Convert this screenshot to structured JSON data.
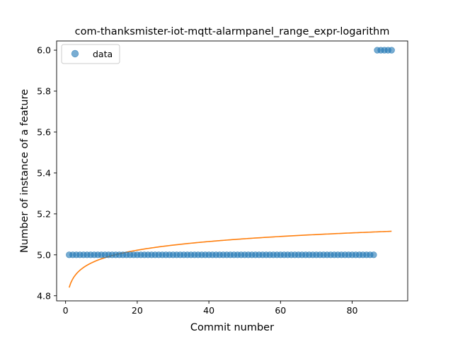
{
  "chart_data": {
    "type": "scatter",
    "title": "com-thanksmister-iot-mqtt-alarmpanel_range_expr-logarithm",
    "xlabel": "Commit number",
    "ylabel": "Number of instance of a feature",
    "xlim": [
      -2.5,
      95.5
    ],
    "ylim": [
      4.775,
      6.045
    ],
    "xticks": [
      0,
      20,
      40,
      60,
      80
    ],
    "yticks": [
      4.8,
      5.0,
      5.2,
      5.4,
      5.6,
      5.8,
      6.0
    ],
    "xtick_labels": [
      "0",
      "20",
      "40",
      "60",
      "80"
    ],
    "ytick_labels": [
      "4.8",
      "5.0",
      "5.2",
      "5.4",
      "5.6",
      "5.8",
      "6.0"
    ],
    "legend": {
      "position": "top-left",
      "entries": [
        "data"
      ]
    },
    "grid": false,
    "series": [
      {
        "name": "data",
        "kind": "points",
        "color": "#1f77b4",
        "segments": [
          {
            "x_start": 1,
            "x_end": 86,
            "y": 5.0
          },
          {
            "x_start": 87,
            "x_end": 91,
            "y": 6.0
          }
        ]
      },
      {
        "kind": "line",
        "color": "#ff7f0e",
        "model": "logarithmic",
        "x_range": [
          1,
          91
        ],
        "y_at_start": 4.84,
        "y_at_end": 5.115
      }
    ]
  }
}
